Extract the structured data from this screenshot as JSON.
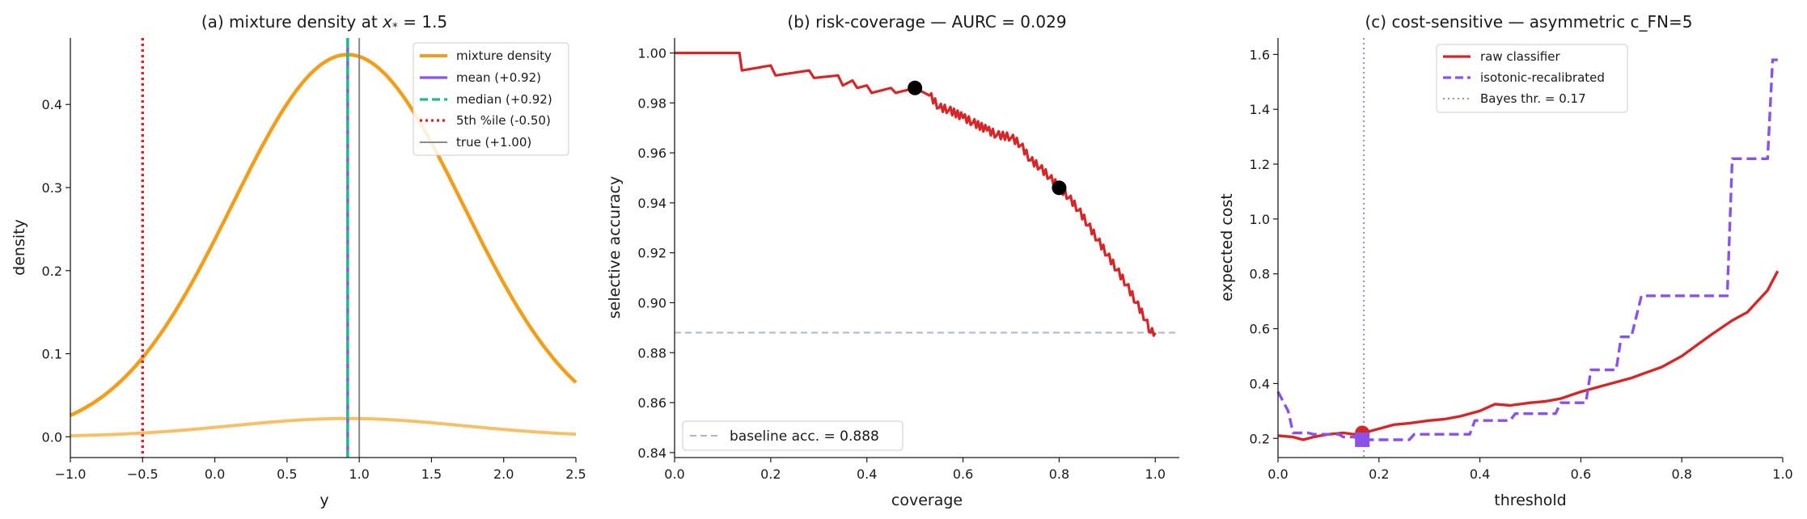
{
  "chart_data": [
    {
      "type": "line",
      "title": "(a) mixture density at x* = 1.5",
      "title_main": "(a) mixture density at ",
      "title_var": "x",
      "title_sub": "*",
      "title_tail": " = 1.5",
      "xlabel": "y",
      "ylabel": "density",
      "xlim": [
        -1.0,
        2.5
      ],
      "ylim": [
        -0.025,
        0.48
      ],
      "xticks": [
        -1.0,
        -0.5,
        0.0,
        0.5,
        1.0,
        1.5,
        2.0,
        2.5
      ],
      "xtick_labels": [
        "−1.0",
        "−0.5",
        "0.0",
        "0.5",
        "1.0",
        "1.5",
        "2.0",
        "2.5"
      ],
      "yticks": [
        0.0,
        0.1,
        0.2,
        0.3,
        0.4
      ],
      "ytick_labels": [
        "0.0",
        "0.1",
        "0.2",
        "0.3",
        "0.4"
      ],
      "legend_position": "top-right",
      "series": [
        {
          "name": "mixture density",
          "color": "#f29e1b",
          "style": "solid",
          "gaussian": {
            "mu": 0.92,
            "sigma": 0.8,
            "peak": 0.46
          }
        },
        {
          "name": "",
          "color": "#f5b54f",
          "style": "solid",
          "gaussian": {
            "mu": 0.92,
            "sigma": 0.8,
            "peak": 0.022
          }
        }
      ],
      "vlines": [
        {
          "name": "mean (+0.92)",
          "x": 0.92,
          "color": "#8a52e8",
          "style": "solid"
        },
        {
          "name": "median (+0.92)",
          "x": 0.92,
          "color": "#1bbf8c",
          "style": "dashed"
        },
        {
          "name": "5th %ile (-0.50)",
          "x": -0.5,
          "color": "#e02020",
          "style": "dotted"
        },
        {
          "name": "true (+1.00)",
          "x": 1.0,
          "color": "#8a8a8a",
          "style": "solid"
        }
      ]
    },
    {
      "type": "line",
      "title": "(b) risk-coverage — AURC = 0.029",
      "xlabel": "coverage",
      "ylabel": "selective accuracy",
      "xlim": [
        0.0,
        1.05
      ],
      "ylim": [
        0.838,
        1.006
      ],
      "xticks": [
        0.0,
        0.2,
        0.4,
        0.6,
        0.8,
        1.0
      ],
      "xtick_labels": [
        "0.0",
        "0.2",
        "0.4",
        "0.6",
        "0.8",
        "1.0"
      ],
      "yticks": [
        0.84,
        0.86,
        0.88,
        0.9,
        0.92,
        0.94,
        0.96,
        0.98,
        1.0
      ],
      "ytick_labels": [
        "0.84",
        "0.86",
        "0.88",
        "0.90",
        "0.92",
        "0.94",
        "0.96",
        "0.98",
        "1.00"
      ],
      "legend_position": "bottom-left",
      "curve": {
        "color": "#d62728",
        "x": [
          0.0,
          0.135,
          0.14,
          0.2,
          0.21,
          0.28,
          0.29,
          0.34,
          0.35,
          0.37,
          0.38,
          0.4,
          0.41,
          0.45,
          0.46,
          0.5,
          0.53,
          0.55,
          0.57,
          0.6,
          0.62,
          0.65,
          0.67,
          0.7,
          0.72,
          0.74,
          0.76,
          0.78,
          0.8,
          0.82,
          0.84,
          0.86,
          0.88,
          0.9,
          0.92,
          0.94,
          0.96,
          0.98,
          0.99,
          1.0
        ],
        "y": [
          1.0,
          1.0,
          0.993,
          0.995,
          0.991,
          0.993,
          0.99,
          0.991,
          0.987,
          0.989,
          0.986,
          0.987,
          0.984,
          0.986,
          0.984,
          0.986,
          0.983,
          0.978,
          0.977,
          0.974,
          0.972,
          0.969,
          0.967,
          0.966,
          0.963,
          0.957,
          0.954,
          0.95,
          0.946,
          0.942,
          0.937,
          0.931,
          0.925,
          0.919,
          0.913,
          0.907,
          0.9,
          0.893,
          0.888,
          0.888
        ]
      },
      "markers": [
        {
          "x": 0.5,
          "y": 0.986,
          "color": "#000000"
        },
        {
          "x": 0.8,
          "y": 0.946,
          "color": "#000000"
        }
      ],
      "hlines": [
        {
          "name": "baseline acc. = 0.888",
          "y": 0.888,
          "color": "#b0b4d0",
          "style": "dashed"
        }
      ]
    },
    {
      "type": "line",
      "title": "(c) cost-sensitive — asymmetric c_FN=5",
      "xlabel": "threshold",
      "ylabel": "expected cost",
      "xlim": [
        0.0,
        1.0
      ],
      "ylim": [
        0.13,
        1.66
      ],
      "xticks": [
        0.0,
        0.2,
        0.4,
        0.6,
        0.8,
        1.0
      ],
      "xtick_labels": [
        "0.0",
        "0.2",
        "0.4",
        "0.6",
        "0.8",
        "1.0"
      ],
      "yticks": [
        0.2,
        0.4,
        0.6,
        0.8,
        1.0,
        1.2,
        1.4,
        1.6
      ],
      "ytick_labels": [
        "0.2",
        "0.4",
        "0.6",
        "0.8",
        "1.0",
        "1.2",
        "1.4",
        "1.6"
      ],
      "legend_position": "top-center",
      "series": [
        {
          "name": "raw classifier",
          "color": "#d62728",
          "style": "solid",
          "x": [
            0.0,
            0.03,
            0.05,
            0.07,
            0.1,
            0.13,
            0.15,
            0.17,
            0.2,
            0.23,
            0.26,
            0.3,
            0.33,
            0.36,
            0.4,
            0.43,
            0.46,
            0.5,
            0.53,
            0.56,
            0.6,
            0.63,
            0.66,
            0.7,
            0.73,
            0.76,
            0.8,
            0.83,
            0.86,
            0.9,
            0.93,
            0.95,
            0.97,
            0.99
          ],
          "y": [
            0.21,
            0.205,
            0.195,
            0.205,
            0.215,
            0.22,
            0.215,
            0.22,
            0.235,
            0.25,
            0.255,
            0.265,
            0.27,
            0.28,
            0.3,
            0.325,
            0.32,
            0.33,
            0.335,
            0.345,
            0.37,
            0.385,
            0.4,
            0.42,
            0.44,
            0.46,
            0.5,
            0.54,
            0.58,
            0.63,
            0.66,
            0.7,
            0.74,
            0.81
          ]
        },
        {
          "name": "isotonic-recalibrated",
          "color": "#8a52e8",
          "style": "dashed",
          "x": [
            0.0,
            0.02,
            0.03,
            0.06,
            0.07,
            0.12,
            0.13,
            0.15,
            0.17,
            0.26,
            0.27,
            0.38,
            0.39,
            0.46,
            0.47,
            0.55,
            0.56,
            0.61,
            0.62,
            0.67,
            0.68,
            0.7,
            0.72,
            0.89,
            0.9,
            0.97,
            0.98,
            0.99
          ],
          "y": [
            0.37,
            0.3,
            0.22,
            0.22,
            0.215,
            0.215,
            0.205,
            0.205,
            0.195,
            0.195,
            0.215,
            0.215,
            0.265,
            0.265,
            0.29,
            0.29,
            0.33,
            0.33,
            0.45,
            0.45,
            0.57,
            0.57,
            0.72,
            0.72,
            1.22,
            1.22,
            1.58,
            1.58
          ]
        }
      ],
      "vlines": [
        {
          "name": "Bayes thr. = 0.17",
          "x": 0.17,
          "color": "#9090d0",
          "style": "dotted"
        }
      ],
      "markers": [
        {
          "x": 0.167,
          "y": 0.22,
          "color": "#d62728",
          "shape": "circle"
        },
        {
          "x": 0.167,
          "y": 0.195,
          "color": "#8a52e8",
          "shape": "square"
        }
      ]
    }
  ]
}
